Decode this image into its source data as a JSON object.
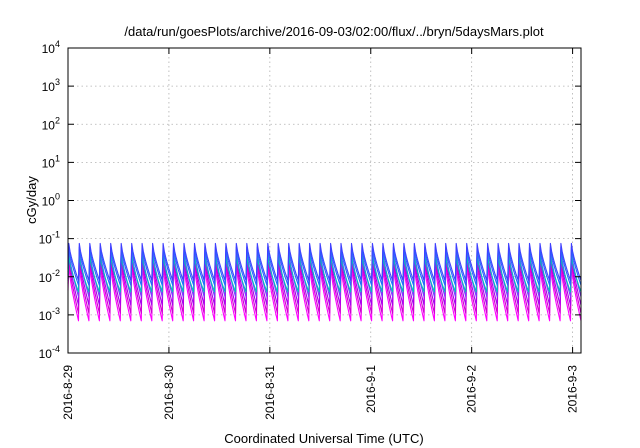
{
  "chart_data": {
    "type": "line",
    "title": "/data/run/goesPlots/archive/2016-09-03/02:00/flux/../bryn/5daysMars.plot",
    "xlabel": "Coordinated Universal Time (UTC)",
    "ylabel": "cGy/day",
    "yscale": "log",
    "ylim": [
      0.0001,
      10000
    ],
    "xlim": [
      "2016-08-29 00:00",
      "2016-09-03 02:00"
    ],
    "x_ticks": [
      "2016-8-29",
      "2016-8-30",
      "2016-8-31",
      "2016-9-1",
      "2016-9-2",
      "2016-9-3"
    ],
    "y_ticks": [
      {
        "base": "10",
        "exp": "-4"
      },
      {
        "base": "10",
        "exp": "-3"
      },
      {
        "base": "10",
        "exp": "-2"
      },
      {
        "base": "10",
        "exp": "-1"
      },
      {
        "base": "10",
        "exp": "0"
      },
      {
        "base": "10",
        "exp": "1"
      },
      {
        "base": "10",
        "exp": "2"
      },
      {
        "base": "10",
        "exp": "3"
      },
      {
        "base": "10",
        "exp": "4"
      }
    ],
    "grid": true,
    "sawtooth_cycles": 49,
    "series": [
      {
        "color": "#ff00ff",
        "peak": 0.02,
        "trough": 0.0007
      },
      {
        "color": "#d000d0",
        "peak": 0.03,
        "trough": 0.0011
      },
      {
        "color": "#aa00ee",
        "peak": 0.04,
        "trough": 0.0018
      },
      {
        "color": "#7a3cff",
        "peak": 0.05,
        "trough": 0.003
      },
      {
        "color": "#00bfbf",
        "peak": 0.035,
        "trough": 0.004
      },
      {
        "color": "#1e6cff",
        "peak": 0.06,
        "trough": 0.006
      },
      {
        "color": "#3f3fff",
        "peak": 0.075,
        "trough": 0.008
      }
    ]
  }
}
